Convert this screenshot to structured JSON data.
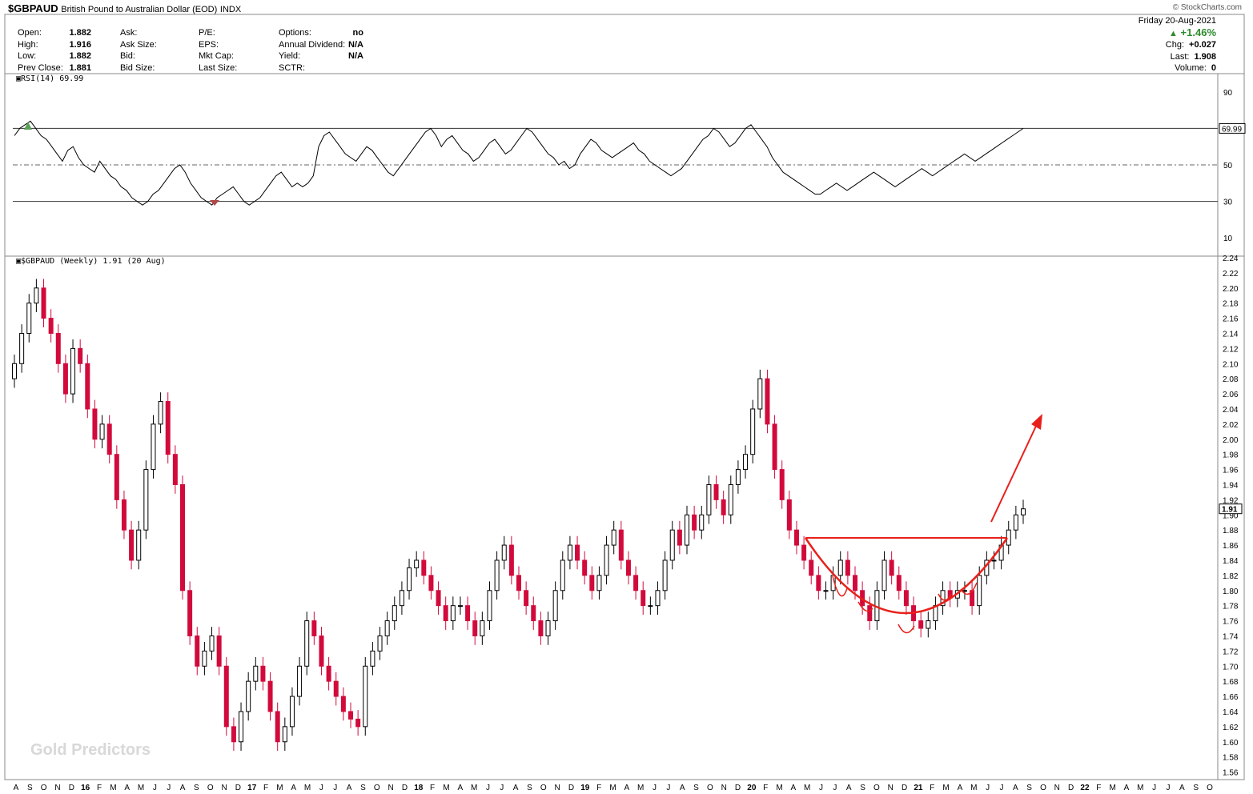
{
  "header": {
    "symbol": "$GBPAUD",
    "name": "British Pound to Australian Dollar (EOD)",
    "exchange": "INDX",
    "copyright": "© StockCharts.com"
  },
  "stats": {
    "col1": [
      {
        "label": "Open:",
        "value": "1.882"
      },
      {
        "label": "High:",
        "value": "1.916"
      },
      {
        "label": "Low:",
        "value": "1.882"
      },
      {
        "label": "Prev Close:",
        "value": "1.881"
      }
    ],
    "col2": [
      {
        "label": "Ask:",
        "value": ""
      },
      {
        "label": "Ask Size:",
        "value": ""
      },
      {
        "label": "Bid:",
        "value": ""
      },
      {
        "label": "Bid Size:",
        "value": ""
      }
    ],
    "col3": [
      {
        "label": "P/E:",
        "value": ""
      },
      {
        "label": "EPS:",
        "value": ""
      },
      {
        "label": "Mkt Cap:",
        "value": ""
      },
      {
        "label": "Last Size:",
        "value": ""
      }
    ],
    "col4": [
      {
        "label": "Options:",
        "value": "no"
      },
      {
        "label": "Annual Dividend:",
        "value": "N/A"
      },
      {
        "label": "Yield:",
        "value": "N/A"
      },
      {
        "label": "SCTR:",
        "value": ""
      }
    ]
  },
  "summary": {
    "date": "Friday  20-Aug-2021",
    "pct_change": "+1.46%",
    "chg_label": "Chg:",
    "chg_value": "+0.027",
    "last_label": "Last:",
    "last_value": "1.908",
    "volume_label": "Volume:",
    "volume_value": "0"
  },
  "watermark": "Gold Predictors",
  "rsi_label": "RSI(14) 69.99",
  "price_label": "$GBPAUD (Weekly) 1.91 (20 Aug)",
  "colors": {
    "up": "#000000",
    "down": "#d20a3c",
    "annotation": "#e8201a",
    "rsi_line": "#000000"
  },
  "chart_data": [
    {
      "type": "line",
      "title": "RSI(14) 69.99",
      "ylim": [
        0,
        100
      ],
      "yticks": [
        10,
        30,
        50,
        90
      ],
      "reference_lines": [
        30,
        50,
        70
      ],
      "last_value_label": "69.99",
      "last_value": 69.99,
      "y": [
        66,
        70,
        72,
        74,
        70,
        66,
        64,
        60,
        56,
        52,
        58,
        60,
        54,
        50,
        48,
        46,
        52,
        48,
        44,
        42,
        38,
        36,
        32,
        30,
        28,
        30,
        34,
        36,
        40,
        44,
        48,
        50,
        46,
        40,
        36,
        32,
        30,
        28,
        32,
        34,
        36,
        38,
        34,
        30,
        28,
        30,
        32,
        36,
        40,
        44,
        46,
        42,
        38,
        40,
        38,
        40,
        44,
        60,
        66,
        68,
        64,
        60,
        56,
        54,
        52,
        56,
        60,
        58,
        54,
        50,
        46,
        44,
        48,
        52,
        56,
        60,
        64,
        68,
        70,
        66,
        60,
        64,
        66,
        62,
        58,
        56,
        52,
        54,
        58,
        62,
        64,
        60,
        56,
        58,
        62,
        66,
        70,
        68,
        64,
        60,
        56,
        54,
        50,
        52,
        48,
        50,
        56,
        60,
        64,
        62,
        58,
        56,
        54,
        56,
        58,
        60,
        62,
        58,
        56,
        52,
        50,
        48,
        46,
        44,
        46,
        48,
        52,
        56,
        60,
        64,
        66,
        70,
        68,
        64,
        60,
        62,
        66,
        70,
        72,
        68,
        64,
        60,
        54,
        50,
        46,
        44,
        42,
        40,
        38,
        36,
        34,
        34,
        36,
        38,
        40,
        38,
        36,
        38,
        40,
        42,
        44,
        46,
        44,
        42,
        40,
        38,
        40,
        42,
        44,
        46,
        48,
        46,
        44,
        46,
        48,
        50,
        52,
        54,
        56,
        54,
        52,
        54,
        56,
        58,
        60,
        62,
        64,
        66,
        68,
        70
      ],
      "x_tick_labels": [
        "A",
        "S",
        "O",
        "N",
        "D",
        "16",
        "F",
        "M",
        "A",
        "M",
        "J",
        "J",
        "A",
        "S",
        "O",
        "N",
        "D",
        "17",
        "F",
        "M",
        "A",
        "M",
        "J",
        "J",
        "A",
        "S",
        "O",
        "N",
        "D",
        "18",
        "F",
        "M",
        "A",
        "M",
        "J",
        "J",
        "A",
        "S",
        "O",
        "N",
        "D",
        "19",
        "F",
        "M",
        "A",
        "M",
        "J",
        "J",
        "A",
        "S",
        "O",
        "N",
        "D",
        "20",
        "F",
        "M",
        "A",
        "M",
        "J",
        "J",
        "A",
        "S",
        "O",
        "N",
        "D",
        "21",
        "F",
        "M",
        "A",
        "M",
        "J",
        "J",
        "A",
        "S",
        "O",
        "N",
        "D",
        "22",
        "F",
        "M",
        "A",
        "M",
        "J",
        "J",
        "A",
        "S",
        "O"
      ]
    },
    {
      "type": "candlestick",
      "title": "$GBPAUD (Weekly) 1.91 (20 Aug)",
      "ylim": [
        1.55,
        2.24
      ],
      "yticks": [
        1.56,
        1.58,
        1.6,
        1.62,
        1.64,
        1.66,
        1.68,
        1.7,
        1.72,
        1.74,
        1.76,
        1.78,
        1.8,
        1.82,
        1.84,
        1.86,
        1.88,
        1.9,
        1.92,
        1.94,
        1.96,
        1.98,
        2.0,
        2.02,
        2.04,
        2.06,
        2.08,
        2.1,
        2.12,
        2.14,
        2.16,
        2.18,
        2.2,
        2.22,
        2.24
      ],
      "last_value_label": "1.91",
      "last_value": 1.908,
      "close": [
        2.1,
        2.14,
        2.18,
        2.2,
        2.16,
        2.14,
        2.1,
        2.06,
        2.12,
        2.1,
        2.04,
        2.0,
        2.02,
        1.98,
        1.92,
        1.88,
        1.84,
        1.88,
        1.96,
        2.02,
        2.05,
        1.98,
        1.94,
        1.8,
        1.74,
        1.7,
        1.72,
        1.74,
        1.7,
        1.62,
        1.6,
        1.64,
        1.68,
        1.7,
        1.68,
        1.64,
        1.6,
        1.62,
        1.66,
        1.7,
        1.76,
        1.74,
        1.7,
        1.68,
        1.66,
        1.64,
        1.63,
        1.62,
        1.7,
        1.72,
        1.74,
        1.76,
        1.78,
        1.8,
        1.83,
        1.84,
        1.82,
        1.8,
        1.78,
        1.76,
        1.78,
        1.78,
        1.76,
        1.74,
        1.76,
        1.8,
        1.84,
        1.86,
        1.82,
        1.8,
        1.78,
        1.76,
        1.74,
        1.76,
        1.8,
        1.84,
        1.86,
        1.84,
        1.82,
        1.8,
        1.82,
        1.86,
        1.88,
        1.84,
        1.82,
        1.8,
        1.78,
        1.78,
        1.8,
        1.84,
        1.88,
        1.86,
        1.9,
        1.88,
        1.9,
        1.94,
        1.92,
        1.9,
        1.94,
        1.96,
        1.98,
        2.04,
        2.08,
        2.02,
        1.96,
        1.92,
        1.88,
        1.86,
        1.84,
        1.82,
        1.8,
        1.8,
        1.82,
        1.84,
        1.82,
        1.8,
        1.78,
        1.76,
        1.8,
        1.84,
        1.82,
        1.8,
        1.78,
        1.76,
        1.75,
        1.76,
        1.78,
        1.8,
        1.79,
        1.8,
        1.8,
        1.78,
        1.82,
        1.84,
        1.84,
        1.86,
        1.88,
        1.9,
        1.908
      ]
    }
  ]
}
